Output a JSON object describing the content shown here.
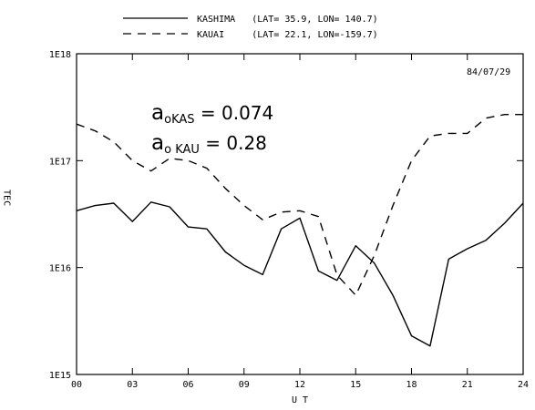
{
  "chart_data": {
    "type": "line",
    "date_label": "84/07/29",
    "xlabel": "U T",
    "ylabel": "T E C",
    "y_scale": "log",
    "xlim": [
      0,
      24
    ],
    "ylim": [
      1000000000000000.0,
      1e+18
    ],
    "x_ticks": [
      0,
      3,
      6,
      9,
      12,
      15,
      18,
      21,
      24
    ],
    "x_tick_labels": [
      "00",
      "03",
      "06",
      "09",
      "12",
      "15",
      "18",
      "21",
      "24"
    ],
    "y_ticks": [
      1000000000000000.0,
      1e+16,
      1e+17,
      1e+18
    ],
    "y_tick_labels": [
      "1E15",
      "1E16",
      "1E17",
      "1E18"
    ],
    "grid": false,
    "legend_position": "top",
    "annotations": [
      "a",
      "oKAS",
      " = 0.074",
      "a",
      "o KAU",
      " = 0.28"
    ],
    "series": [
      {
        "name": "KASHIMA",
        "legend_text": "KASHIMA   (LAT= 35.9, LON= 140.7)",
        "dash": "solid",
        "x": [
          0,
          1,
          2,
          3,
          4,
          5,
          6,
          7,
          8,
          9,
          10,
          11,
          12,
          13,
          14,
          15,
          16,
          17,
          18,
          19,
          20,
          21,
          22,
          23,
          24
        ],
        "y": [
          3.4e+16,
          3.8e+16,
          4e+16,
          2.7e+16,
          4.1e+16,
          3.7e+16,
          2.4e+16,
          2.3e+16,
          1.4e+16,
          1.05e+16,
          8600000000000000.0,
          2.3e+16,
          2.9e+16,
          9300000000000000.0,
          7600000000000000.0,
          1.6e+16,
          1.1e+16,
          5500000000000000.0,
          2300000000000000.0,
          1850000000000000.0,
          1.2e+16,
          1.5e+16,
          1.8e+16,
          2.6e+16,
          4e+16
        ]
      },
      {
        "name": "KAUAI",
        "legend_text": "KAUAI     (LAT= 22.1, LON=-159.7)",
        "dash": "dashed",
        "x": [
          0,
          1,
          2,
          3,
          4,
          5,
          6,
          7,
          8,
          9,
          10,
          11,
          12,
          13,
          14,
          15,
          16,
          17,
          18,
          19,
          20,
          21,
          22,
          23,
          24
        ],
        "y": [
          2.2e+17,
          1.9e+17,
          1.5e+17,
          1e+17,
          8e+16,
          1.05e+17,
          1e+17,
          8.5e+16,
          5.5e+16,
          3.8e+16,
          2.8e+16,
          3.3e+16,
          3.4e+16,
          3e+16,
          8500000000000000.0,
          5500000000000000.0,
          1.3e+16,
          3.8e+16,
          1e+17,
          1.7e+17,
          1.8e+17,
          1.8e+17,
          2.5e+17,
          2.7e+17,
          2.7e+17
        ]
      }
    ]
  }
}
